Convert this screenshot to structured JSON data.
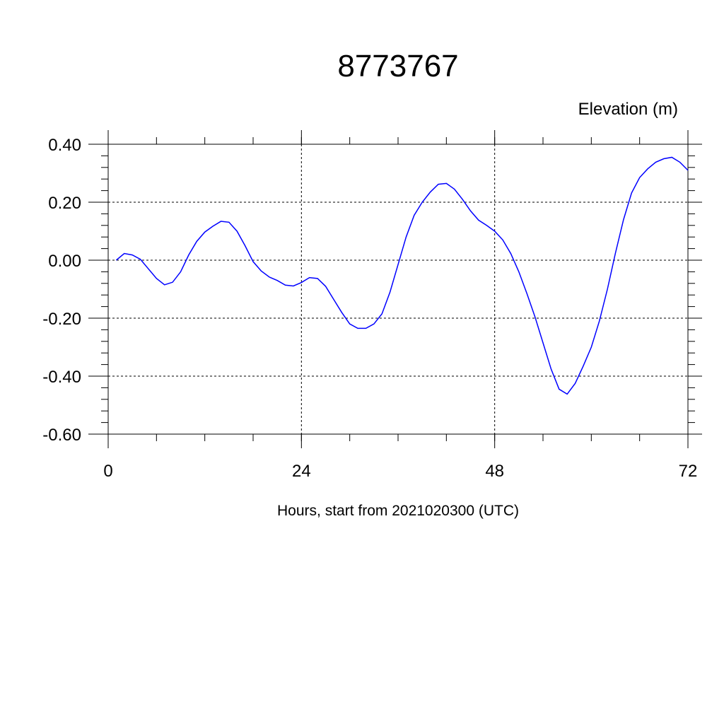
{
  "chart_data": {
    "type": "line",
    "title": "8773767",
    "unit_label": "Elevation (m)",
    "xlabel": "Hours, start from 2021020300 (UTC)",
    "ylabel": "",
    "xlim": [
      0,
      72
    ],
    "ylim": [
      -0.6,
      0.4
    ],
    "x_ticks": [
      0,
      24,
      48,
      72
    ],
    "x_tick_labels": [
      "0",
      "24",
      "48",
      "72"
    ],
    "y_ticks": [
      0.4,
      0.2,
      0.0,
      -0.2,
      -0.4,
      -0.6
    ],
    "y_tick_labels": [
      "0.40",
      "0.20",
      "0.00",
      "-0.20",
      "-0.40",
      "-0.60"
    ],
    "grid": true,
    "line_color": "#0000ff",
    "series": [
      {
        "x": [
          1,
          2,
          3,
          4,
          5,
          6,
          7,
          8,
          9,
          10,
          11,
          12,
          13,
          14,
          15,
          16,
          17,
          18,
          19,
          20,
          21,
          22,
          23,
          24,
          25,
          26,
          27,
          28,
          29,
          30,
          31,
          32,
          33,
          34,
          35,
          36,
          37,
          38,
          39,
          40,
          41,
          42,
          43,
          44,
          45,
          46,
          47,
          48,
          49,
          50,
          51,
          52,
          53,
          54,
          55,
          56,
          57,
          58,
          59,
          60,
          61,
          62,
          63,
          64,
          65,
          66,
          67,
          68,
          69,
          70,
          71,
          72
        ],
        "values": [
          0.0,
          0.023,
          0.018,
          0.003,
          -0.03,
          -0.063,
          -0.085,
          -0.076,
          -0.04,
          0.018,
          0.065,
          0.097,
          0.117,
          0.134,
          0.131,
          0.1,
          0.05,
          -0.005,
          -0.037,
          -0.058,
          -0.07,
          -0.086,
          -0.089,
          -0.077,
          -0.06,
          -0.063,
          -0.09,
          -0.135,
          -0.18,
          -0.22,
          -0.235,
          -0.235,
          -0.22,
          -0.185,
          -0.11,
          -0.015,
          0.08,
          0.155,
          0.2,
          0.235,
          0.262,
          0.265,
          0.245,
          0.21,
          0.17,
          0.138,
          0.12,
          0.1,
          0.07,
          0.023,
          -0.04,
          -0.115,
          -0.195,
          -0.285,
          -0.375,
          -0.445,
          -0.462,
          -0.425,
          -0.365,
          -0.3,
          -0.21,
          -0.1,
          0.025,
          0.14,
          0.232,
          0.285,
          0.315,
          0.338,
          0.35,
          0.355,
          0.338,
          0.31
        ]
      }
    ]
  }
}
